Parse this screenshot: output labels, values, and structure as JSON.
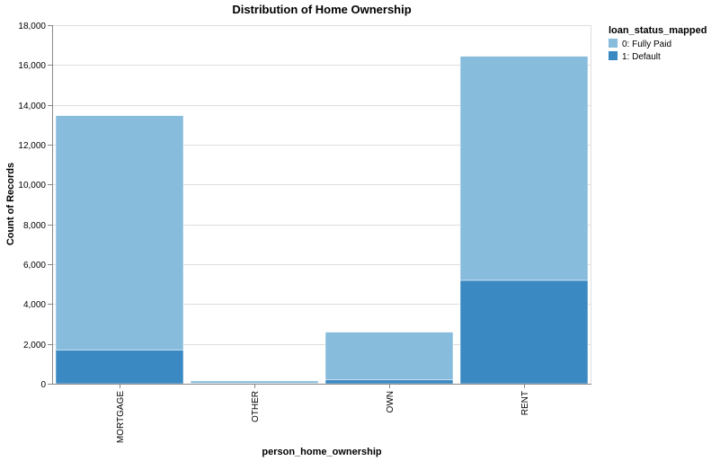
{
  "chart_data": {
    "type": "bar",
    "stacked": true,
    "title": "Distribution of Home Ownership",
    "xlabel": "person_home_ownership",
    "ylabel": "Count of Records",
    "categories": [
      "MORTGAGE",
      "OTHER",
      "OWN",
      "RENT"
    ],
    "ylim": [
      0,
      18000
    ],
    "yticks": [
      0,
      2000,
      4000,
      6000,
      8000,
      10000,
      12000,
      14000,
      16000,
      18000
    ],
    "ytick_labels": [
      "0",
      "2,000",
      "4,000",
      "6,000",
      "8,000",
      "10,000",
      "12,000",
      "14,000",
      "16,000",
      "18,000"
    ],
    "grid": true,
    "legend": {
      "title": "loan_status_mapped",
      "placement": "top-right",
      "entries": [
        "0: Fully Paid",
        "1: Default"
      ]
    },
    "series": [
      {
        "name": "1: Default",
        "color": "#3a89c3",
        "values": [
          1680,
          30,
          190,
          5190
        ]
      },
      {
        "name": "0: Fully Paid",
        "color": "#88bcdc",
        "values": [
          11780,
          110,
          2400,
          11250
        ]
      }
    ]
  }
}
